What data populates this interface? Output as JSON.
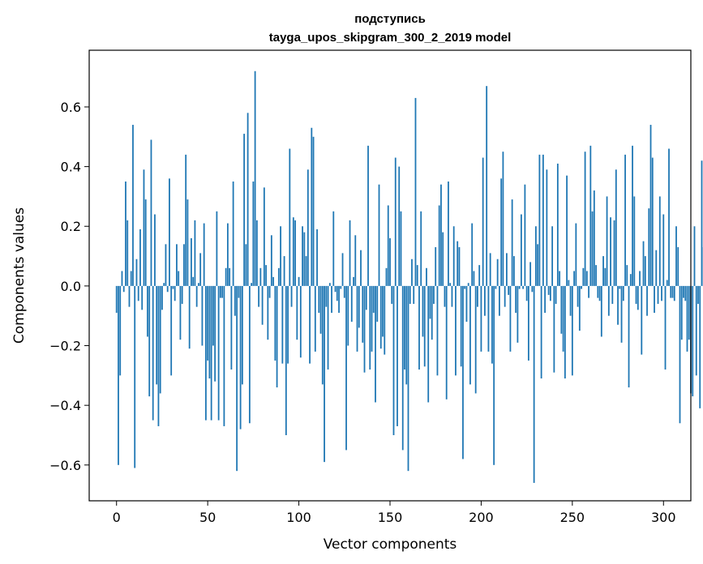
{
  "chart_data": {
    "type": "bar",
    "title": "подступись",
    "subtitle": "tayga_upos_skipgram_300_2_2019 model",
    "xlabel": "Vector components",
    "ylabel": "Components values",
    "xlim": [
      -15,
      315
    ],
    "ylim": [
      -0.72,
      0.79
    ],
    "xticks": [
      0,
      50,
      100,
      150,
      200,
      250,
      300
    ],
    "xtick_labels": [
      "0",
      "50",
      "100",
      "150",
      "200",
      "250",
      "300"
    ],
    "yticks": [
      -0.6,
      -0.4,
      -0.2,
      0.0,
      0.2,
      0.4,
      0.6
    ],
    "ytick_labels": [
      "−0.6",
      "−0.4",
      "−0.2",
      "0.0",
      "0.2",
      "0.4",
      "0.6"
    ],
    "grid": false,
    "bar_color": "#1f77b4",
    "values": [
      -0.09,
      -0.6,
      -0.3,
      0.05,
      -0.02,
      0.35,
      0.22,
      -0.07,
      0.05,
      0.54,
      -0.61,
      0.09,
      -0.05,
      0.19,
      -0.08,
      0.39,
      0.29,
      -0.17,
      -0.37,
      0.49,
      -0.45,
      0.24,
      -0.33,
      -0.47,
      -0.36,
      -0.08,
      0.01,
      0.14,
      -0.02,
      0.36,
      -0.3,
      -0.01,
      -0.05,
      0.14,
      0.05,
      -0.18,
      -0.06,
      0.14,
      0.44,
      0.29,
      -0.21,
      0.16,
      0.03,
      0.22,
      -0.07,
      0.01,
      0.11,
      -0.2,
      0.21,
      -0.45,
      -0.25,
      -0.31,
      -0.45,
      -0.2,
      -0.32,
      0.25,
      -0.45,
      -0.04,
      -0.04,
      -0.47,
      0.06,
      0.21,
      0.06,
      -0.28,
      0.35,
      -0.1,
      -0.62,
      -0.04,
      -0.48,
      -0.33,
      0.51,
      0.14,
      0.58,
      -0.46,
      0.01,
      0.35,
      0.72,
      0.22,
      -0.07,
      0.06,
      -0.13,
      0.33,
      0.07,
      -0.18,
      -0.04,
      0.17,
      0.03,
      -0.25,
      -0.34,
      0.06,
      0.2,
      -0.26,
      0.1,
      -0.5,
      -0.26,
      0.46,
      -0.07,
      0.23,
      0.22,
      -0.18,
      0.03,
      -0.24,
      0.2,
      0.18,
      0.1,
      0.39,
      -0.26,
      0.53,
      0.5,
      -0.22,
      0.19,
      -0.09,
      -0.16,
      -0.33,
      -0.59,
      -0.07,
      -0.28,
      0.01,
      -0.09,
      0.25,
      -0.02,
      -0.05,
      -0.09,
      -0.01,
      0.11,
      -0.04,
      -0.55,
      -0.2,
      0.22,
      -0.12,
      0.03,
      0.17,
      -0.22,
      -0.14,
      0.12,
      -0.19,
      -0.29,
      -0.08,
      0.47,
      -0.28,
      -0.22,
      -0.09,
      -0.39,
      -0.12,
      0.34,
      -0.21,
      -0.17,
      -0.23,
      0.06,
      0.27,
      0.16,
      -0.06,
      -0.5,
      0.43,
      -0.47,
      0.4,
      0.25,
      -0.55,
      -0.28,
      -0.33,
      -0.62,
      -0.06,
      0.09,
      -0.06,
      0.63,
      0.07,
      -0.28,
      0.25,
      -0.17,
      -0.27,
      0.06,
      -0.39,
      -0.11,
      -0.18,
      -0.06,
      0.13,
      -0.3,
      0.27,
      0.34,
      0.18,
      -0.07,
      -0.38,
      0.35,
      0.01,
      -0.07,
      0.2,
      -0.3,
      0.15,
      0.13,
      -0.27,
      -0.58,
      -0.01,
      -0.12,
      0.01,
      -0.33,
      0.21,
      0.05,
      -0.36,
      -0.07,
      0.07,
      -0.22,
      0.43,
      -0.1,
      0.67,
      -0.22,
      0.11,
      -0.26,
      -0.6,
      -0.01,
      0.09,
      -0.1,
      0.36,
      0.45,
      -0.07,
      0.11,
      -0.03,
      -0.22,
      0.29,
      0.1,
      -0.09,
      -0.19,
      -0.01,
      0.24,
      -0.01,
      0.34,
      -0.05,
      -0.25,
      0.08,
      -0.02,
      -0.66,
      0.2,
      0.14,
      0.44,
      -0.31,
      0.44,
      -0.09,
      0.39,
      -0.03,
      -0.05,
      0.2,
      -0.29,
      -0.06,
      0.41,
      0.05,
      -0.16,
      -0.22,
      -0.31,
      0.37,
      0.02,
      -0.1,
      -0.3,
      0.05,
      0.21,
      -0.07,
      -0.15,
      -0.01,
      0.06,
      0.45,
      0.05,
      -0.04,
      0.47,
      0.25,
      0.32,
      0.07,
      -0.04,
      -0.05,
      -0.17,
      0.1,
      0.06,
      0.3,
      -0.1,
      0.23,
      -0.06,
      0.22,
      0.39,
      -0.13,
      -0.01,
      -0.19,
      -0.05,
      0.44,
      0.07,
      -0.34,
      0.04,
      0.47,
      0.3,
      -0.06,
      -0.08,
      0.05,
      -0.23,
      0.15,
      0.1,
      -0.1,
      0.26,
      0.54,
      0.43,
      -0.09,
      0.12,
      -0.06,
      0.3,
      -0.05,
      0.24,
      -0.28,
      0.02,
      0.46,
      -0.04,
      -0.04,
      -0.05,
      0.2,
      0.13,
      -0.46,
      -0.18,
      -0.04,
      -0.05,
      -0.22,
      -0.18,
      -0.36,
      -0.37,
      0.2,
      -0.3,
      -0.06,
      -0.41,
      0.42,
      0.13
    ]
  }
}
